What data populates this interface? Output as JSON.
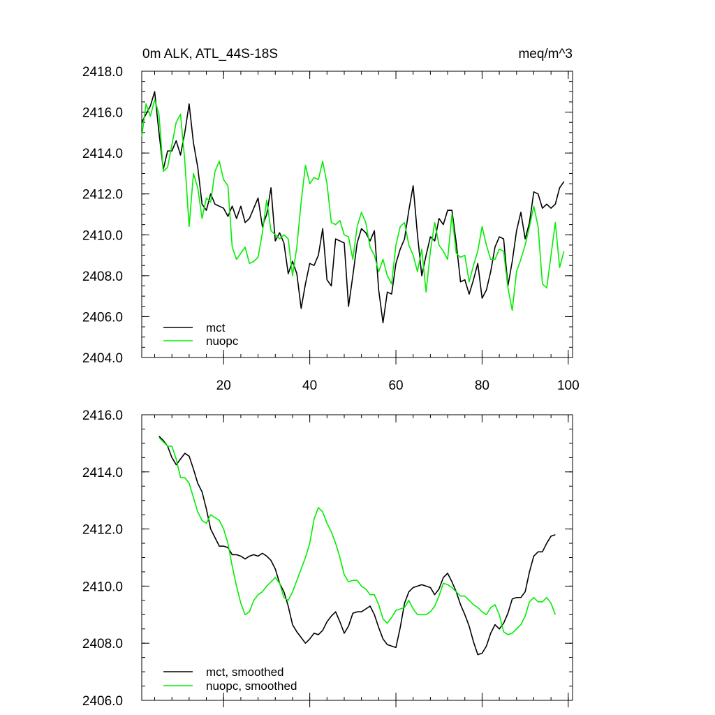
{
  "colors": {
    "mct": "#000000",
    "nuopc": "#00ee00"
  },
  "chart_data": [
    {
      "type": "line",
      "title": "0m ALK, ATL_44S-18S",
      "units": "meq/m^3",
      "xlim": [
        1,
        101
      ],
      "ylim": [
        2404,
        2418
      ],
      "xticks": [
        20,
        40,
        60,
        80,
        100
      ],
      "xtick_labels": [
        "20",
        "40",
        "60",
        "80",
        "100"
      ],
      "yticks": [
        2404,
        2406,
        2408,
        2410,
        2412,
        2414,
        2416,
        2418
      ],
      "ytick_labels": [
        "2404.0",
        "2406.0",
        "2408.0",
        "2410.0",
        "2412.0",
        "2414.0",
        "2416.0",
        "2418.0"
      ],
      "legend_position": "bottom-left",
      "x_start": 1,
      "series": [
        {
          "name": "mct",
          "color_key": "mct",
          "values": [
            2415.5,
            2415.9,
            2416.3,
            2417.0,
            2415.0,
            2413.2,
            2414.1,
            2414.1,
            2414.6,
            2413.9,
            2415.0,
            2416.4,
            2414.5,
            2413.3,
            2411.5,
            2411.2,
            2412.0,
            2411.5,
            2411.4,
            2411.3,
            2410.9,
            2411.4,
            2410.8,
            2411.4,
            2410.6,
            2410.8,
            2411.3,
            2411.8,
            2410.4,
            2411.0,
            2412.3,
            2409.7,
            2410.1,
            2409.6,
            2408.1,
            2408.7,
            2408.1,
            2406.4,
            2407.6,
            2408.6,
            2408.5,
            2409.0,
            2410.3,
            2407.8,
            2407.5,
            2409.8,
            2409.7,
            2409.6,
            2406.5,
            2408.0,
            2409.6,
            2410.3,
            2410.1,
            2409.7,
            2410.2,
            2407.3,
            2405.7,
            2407.2,
            2407.1,
            2408.6,
            2409.3,
            2409.8,
            2411.2,
            2412.4,
            2410.0,
            2408.0,
            2409.0,
            2409.9,
            2409.7,
            2410.8,
            2410.5,
            2411.2,
            2411.2,
            2409.6,
            2407.7,
            2407.8,
            2407.1,
            2407.8,
            2408.6,
            2406.9,
            2407.3,
            2408.2,
            2409.4,
            2409.9,
            2409.8,
            2407.5,
            2408.7,
            2410.2,
            2411.1,
            2409.8,
            2410.6,
            2412.1,
            2412.0,
            2411.3,
            2411.5,
            2411.3,
            2411.5,
            2412.3,
            2412.6
          ]
        },
        {
          "name": "nuopc",
          "color_key": "nuopc",
          "values": [
            2414.8,
            2416.4,
            2415.8,
            2416.6,
            2415.9,
            2413.1,
            2413.3,
            2414.4,
            2415.5,
            2415.9,
            2413.6,
            2410.4,
            2413.0,
            2412.3,
            2410.8,
            2411.8,
            2411.6,
            2413.1,
            2413.6,
            2412.7,
            2412.4,
            2409.4,
            2408.8,
            2409.1,
            2409.4,
            2408.6,
            2408.7,
            2408.9,
            2410.1,
            2411.7,
            2410.2,
            2410.0,
            2409.8,
            2410.0,
            2409.8,
            2408.0,
            2409.4,
            2411.6,
            2413.4,
            2412.5,
            2412.8,
            2412.7,
            2413.6,
            2412.5,
            2410.6,
            2410.5,
            2410.7,
            2410.0,
            2409.9,
            2408.8,
            2410.4,
            2411.1,
            2410.6,
            2409.4,
            2409.0,
            2408.2,
            2408.8,
            2408.0,
            2407.6,
            2409.5,
            2410.4,
            2410.6,
            2409.5,
            2409.0,
            2408.2,
            2409.3,
            2407.2,
            2409.2,
            2410.6,
            2409.5,
            2409.2,
            2408.8,
            2411.0,
            2409.1,
            2408.9,
            2409.0,
            2407.7,
            2408.5,
            2409.2,
            2410.4,
            2409.5,
            2408.8,
            2408.8,
            2409.3,
            2409.2,
            2407.4,
            2406.3,
            2408.2,
            2408.8,
            2409.5,
            2410.4,
            2411.4,
            2410.4,
            2407.6,
            2407.4,
            2409.0,
            2410.6,
            2408.4,
            2409.2
          ]
        }
      ]
    },
    {
      "type": "line",
      "title": "",
      "xlim": [
        1,
        101
      ],
      "ylim": [
        2406,
        2416
      ],
      "xticks": [
        20,
        40,
        60,
        80,
        100
      ],
      "xtick_labels": [],
      "yticks": [
        2406,
        2408,
        2410,
        2412,
        2414,
        2416
      ],
      "ytick_labels": [
        "2406.0",
        "2408.0",
        "2410.0",
        "2412.0",
        "2414.0",
        "2416.0"
      ],
      "legend_position": "bottom-left",
      "x_start": 5,
      "series": [
        {
          "name": "mct, smoothed",
          "color_key": "mct",
          "values": [
            2415.25,
            2415.1,
            2414.9,
            2414.5,
            2414.25,
            2414.45,
            2414.65,
            2414.55,
            2414.1,
            2413.6,
            2413.3,
            2412.7,
            2412.0,
            2411.7,
            2411.4,
            2411.4,
            2411.35,
            2411.1,
            2411.1,
            2411.05,
            2410.95,
            2411.05,
            2411.1,
            2411.05,
            2411.15,
            2411.05,
            2410.9,
            2410.6,
            2410.1,
            2409.8,
            2409.3,
            2408.65,
            2408.4,
            2408.2,
            2408.0,
            2408.15,
            2408.35,
            2408.3,
            2408.45,
            2408.75,
            2408.95,
            2409.1,
            2408.75,
            2408.35,
            2408.6,
            2409.05,
            2409.1,
            2409.1,
            2409.2,
            2409.3,
            2409.0,
            2408.55,
            2408.15,
            2407.95,
            2407.9,
            2407.85,
            2408.55,
            2409.4,
            2409.8,
            2409.95,
            2410.0,
            2410.05,
            2410.0,
            2409.95,
            2409.7,
            2409.9,
            2410.3,
            2410.45,
            2410.15,
            2409.8,
            2409.35,
            2409.0,
            2408.6,
            2408.05,
            2407.6,
            2407.65,
            2407.9,
            2408.35,
            2408.65,
            2408.5,
            2408.7,
            2409.05,
            2409.55,
            2409.6,
            2409.6,
            2409.8,
            2410.5,
            2411.05,
            2411.2,
            2411.2,
            2411.5,
            2411.75,
            2411.8
          ]
        },
        {
          "name": "nuopc, smoothed",
          "color_key": "nuopc",
          "values": [
            2415.2,
            2415.05,
            2414.9,
            2414.9,
            2414.45,
            2413.8,
            2413.8,
            2413.6,
            2413.1,
            2412.6,
            2412.3,
            2412.2,
            2412.5,
            2412.4,
            2412.3,
            2412.0,
            2411.5,
            2410.7,
            2410.0,
            2409.4,
            2409.0,
            2409.1,
            2409.5,
            2409.7,
            2409.8,
            2410.0,
            2410.15,
            2410.3,
            2410.1,
            2409.6,
            2409.5,
            2409.8,
            2410.2,
            2410.6,
            2411.0,
            2411.5,
            2412.35,
            2412.75,
            2412.6,
            2412.2,
            2411.9,
            2411.5,
            2411.0,
            2410.4,
            2410.15,
            2410.2,
            2410.2,
            2410.0,
            2409.9,
            2409.7,
            2409.7,
            2409.35,
            2408.85,
            2408.7,
            2408.9,
            2409.15,
            2409.2,
            2409.25,
            2409.5,
            2409.2,
            2409.0,
            2409.0,
            2409.0,
            2409.1,
            2409.3,
            2409.65,
            2410.1,
            2410.05,
            2409.95,
            2409.8,
            2409.65,
            2409.65,
            2409.5,
            2409.35,
            2409.25,
            2409.1,
            2409.0,
            2409.25,
            2409.35,
            2409.0,
            2408.4,
            2408.3,
            2408.35,
            2408.5,
            2408.65,
            2408.95,
            2409.45,
            2409.6,
            2409.45,
            2409.45,
            2409.6,
            2409.4,
            2409.0
          ]
        }
      ]
    }
  ]
}
